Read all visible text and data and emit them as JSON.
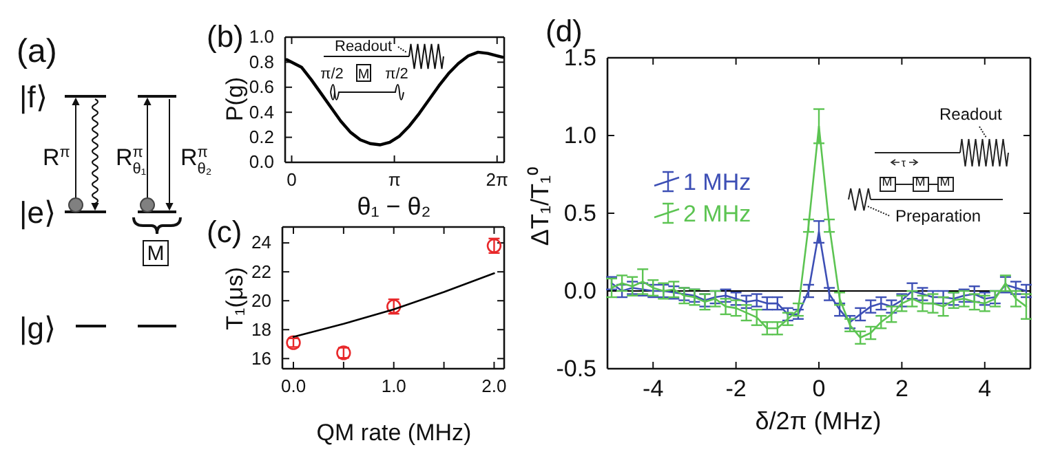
{
  "chart_data": [
    {
      "type": "other",
      "title": "(a)",
      "annotations": [
        "|f⟩",
        "|e⟩",
        "|g⟩",
        "R$^{π}$",
        "R$^{π}$$_{θ₁}$",
        "R$^{π}$$_{θ₂}$",
        "M"
      ]
    },
    {
      "type": "line",
      "title": "(b)",
      "xlabel": "θ₁ − θ₂",
      "ylabel": "P(g)",
      "xlim": [
        -0.2,
        6.5
      ],
      "ylim": [
        0,
        1
      ],
      "xticks": [
        0,
        {
          "value": 3.1416,
          "label": "π"
        },
        {
          "value": 6.2832,
          "label": "2π"
        }
      ],
      "yticks": [
        {
          "value": 0,
          "label": "0.0"
        },
        {
          "value": 0.2,
          "label": "0.2"
        },
        {
          "value": 0.4,
          "label": "0.4"
        },
        {
          "value": 0.6,
          "label": "0.6"
        },
        {
          "value": 0.8,
          "label": "0.8"
        },
        {
          "value": 1,
          "label": "1.0"
        }
      ],
      "grid": false,
      "legend": false,
      "annotations": [
        "Readout",
        "π/2",
        "M",
        "π/2"
      ],
      "series": [
        {
          "color": "#000000",
          "x": [
            -0.15,
            0.3,
            0.6,
            0.9,
            1.2,
            1.5,
            1.8,
            2.1,
            2.4,
            2.7,
            3.0,
            3.3,
            3.6,
            3.9,
            4.2,
            4.5,
            4.8,
            5.1,
            5.4,
            5.7,
            6.0,
            6.3,
            6.45
          ],
          "values": [
            0.82,
            0.76,
            0.66,
            0.55,
            0.44,
            0.33,
            0.24,
            0.18,
            0.15,
            0.14,
            0.16,
            0.21,
            0.29,
            0.39,
            0.5,
            0.61,
            0.71,
            0.79,
            0.85,
            0.88,
            0.87,
            0.85,
            0.84
          ]
        }
      ]
    },
    {
      "type": "scatter",
      "title": "(c)",
      "xlabel": "QM rate (MHz)",
      "ylabel": "T₁(μs)",
      "xlim": [
        -0.11,
        2.1
      ],
      "ylim": [
        15.3,
        25.1
      ],
      "xticks": [
        {
          "value": 0,
          "label": "0.0"
        },
        {
          "value": 0.5,
          "label": null
        },
        {
          "value": 1,
          "label": "1.0"
        },
        {
          "value": 1.5,
          "label": null
        },
        {
          "value": 2,
          "label": "2.0"
        }
      ],
      "yticks": [
        16,
        18,
        20,
        22,
        24
      ],
      "grid": false,
      "legend": false,
      "series": [
        {
          "type": "scatter",
          "marker": "circle",
          "color": "#e8282a",
          "x": [
            0,
            0.5,
            1,
            2
          ],
          "values": [
            17.1,
            16.4,
            19.6,
            23.8
          ],
          "errors": [
            0.3,
            0.35,
            0.5,
            0.5
          ]
        },
        {
          "type": "line",
          "marker": "none",
          "color": "#000000",
          "x": [
            0,
            0.5,
            1,
            1.5,
            2
          ],
          "values": [
            17.5,
            18.4,
            19.4,
            20.6,
            21.9
          ]
        }
      ]
    },
    {
      "type": "line",
      "title": "(d)",
      "xlabel": "δ/2π (MHz)",
      "ylabel": "ΔT₁/T₁⁰",
      "xlim": [
        -5.1,
        5.1
      ],
      "ylim": [
        -0.5,
        1.5
      ],
      "xticks": [
        -4,
        -2,
        0,
        2,
        4
      ],
      "yticks": [
        {
          "value": -0.5,
          "label": "-0.5"
        },
        {
          "value": 0,
          "label": "0.0"
        },
        {
          "value": 0.5,
          "label": "0.5"
        },
        {
          "value": 1,
          "label": "1.0"
        },
        {
          "value": 1.5,
          "label": "1.5"
        }
      ],
      "grid": false,
      "legend": "top left",
      "ref_lines": [
        {
          "axis": "y",
          "value": 0,
          "color": "#000000"
        }
      ],
      "annotations": [
        "Readout",
        "τ",
        "M",
        "M",
        "M",
        "Preparation"
      ],
      "x": [
        -5,
        -4.75,
        -4.5,
        -4.25,
        -4,
        -3.75,
        -3.5,
        -3.25,
        -3,
        -2.75,
        -2.5,
        -2.25,
        -2,
        -1.75,
        -1.5,
        -1.25,
        -1,
        -0.75,
        -0.5,
        -0.25,
        0,
        0.25,
        0.5,
        0.75,
        1,
        1.25,
        1.5,
        1.75,
        2,
        2.25,
        2.5,
        2.75,
        3,
        3.25,
        3.5,
        3.75,
        4,
        4.25,
        4.5,
        4.75,
        5
      ],
      "series": [
        {
          "name": "1 MHz",
          "marker": "none",
          "color": "#3d4fb5",
          "values": [
            0.05,
            0.0,
            0.02,
            0.01,
            0.0,
            0.0,
            -0.01,
            -0.02,
            -0.03,
            -0.06,
            -0.04,
            -0.03,
            -0.05,
            -0.07,
            -0.06,
            -0.08,
            -0.08,
            -0.15,
            -0.15,
            0.0,
            0.38,
            -0.02,
            -0.12,
            -0.2,
            -0.15,
            -0.1,
            -0.08,
            -0.1,
            -0.06,
            0.0,
            -0.02,
            -0.04,
            -0.04,
            -0.05,
            -0.03,
            -0.02,
            -0.05,
            -0.04,
            0.04,
            0.02,
            0.0
          ],
          "errors": [
            0.04,
            0.04,
            0.04,
            0.04,
            0.04,
            0.04,
            0.04,
            0.04,
            0.04,
            0.04,
            0.04,
            0.04,
            0.04,
            0.04,
            0.04,
            0.04,
            0.04,
            0.04,
            0.03,
            0.04,
            0.07,
            0.04,
            0.04,
            0.04,
            0.04,
            0.04,
            0.04,
            0.04,
            0.04,
            0.05,
            0.04,
            0.04,
            0.04,
            0.04,
            0.04,
            0.05,
            0.04,
            0.04,
            0.05,
            0.04,
            0.04
          ]
        },
        {
          "name": "2 MHz",
          "marker": "none",
          "color": "#5cc452",
          "values": [
            0.02,
            0.05,
            0.03,
            0.06,
            0.02,
            0.0,
            0.01,
            -0.03,
            -0.04,
            -0.07,
            -0.05,
            -0.1,
            -0.11,
            -0.14,
            -0.17,
            -0.24,
            -0.24,
            -0.18,
            -0.12,
            0.42,
            1.06,
            0.42,
            -0.05,
            -0.22,
            -0.3,
            -0.27,
            -0.2,
            -0.15,
            -0.08,
            -0.05,
            -0.08,
            -0.08,
            -0.1,
            -0.06,
            -0.05,
            -0.07,
            -0.08,
            -0.05,
            0.05,
            -0.05,
            -0.1
          ],
          "errors": [
            0.06,
            0.05,
            0.06,
            0.08,
            0.05,
            0.05,
            0.05,
            0.05,
            0.05,
            0.05,
            0.05,
            0.05,
            0.05,
            0.05,
            0.05,
            0.04,
            0.04,
            0.04,
            0.04,
            0.04,
            0.11,
            0.04,
            0.04,
            0.04,
            0.04,
            0.04,
            0.04,
            0.05,
            0.05,
            0.05,
            0.05,
            0.06,
            0.06,
            0.05,
            0.05,
            0.05,
            0.05,
            0.05,
            0.05,
            0.05,
            0.08
          ]
        }
      ]
    }
  ]
}
